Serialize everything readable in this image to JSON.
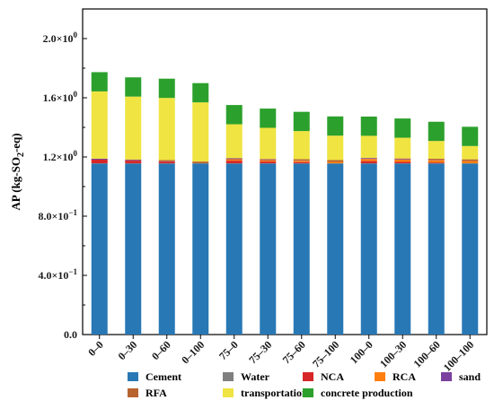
{
  "chart_data": {
    "type": "bar",
    "stacked": true,
    "title": "",
    "xlabel": "",
    "ylabel": "AP (kg-SO2-eq)",
    "ylim": [
      0,
      2.2
    ],
    "y_ticks": [
      {
        "value": 0.0,
        "label": "0.0"
      },
      {
        "value": 0.4,
        "label": "4.0×10",
        "exp": "−1"
      },
      {
        "value": 0.8,
        "label": "8.0×10",
        "exp": "−1"
      },
      {
        "value": 1.2,
        "label": "1.2×10",
        "exp": "0"
      },
      {
        "value": 1.6,
        "label": "1.6×10",
        "exp": "0"
      },
      {
        "value": 2.0,
        "label": "2.0×10",
        "exp": "0"
      }
    ],
    "grid": false,
    "legend_position": "bottom",
    "categories": [
      "0–0",
      "0–30",
      "0–60",
      "0–100",
      "75–0",
      "75–30",
      "75–60",
      "75–100",
      "100–0",
      "100–30",
      "100–60",
      "100–100"
    ],
    "series": [
      {
        "name": "Cement",
        "color": "#2878b5",
        "values": [
          1.155,
          1.155,
          1.155,
          1.155,
          1.155,
          1.155,
          1.155,
          1.155,
          1.155,
          1.155,
          1.155,
          1.155
        ]
      },
      {
        "name": "Water",
        "color": "#7f7f7f",
        "values": [
          0.002,
          0.002,
          0.002,
          0.002,
          0.002,
          0.002,
          0.002,
          0.002,
          0.002,
          0.002,
          0.002,
          0.002
        ]
      },
      {
        "name": "NCA",
        "color": "#d62728",
        "values": [
          0.025,
          0.018,
          0.012,
          0.0,
          0.018,
          0.012,
          0.008,
          0.0,
          0.015,
          0.01,
          0.006,
          0.0
        ]
      },
      {
        "name": "RCA",
        "color": "#ff7f0e",
        "values": [
          0.0,
          0.0,
          0.0,
          0.0,
          0.01,
          0.01,
          0.01,
          0.01,
          0.015,
          0.015,
          0.015,
          0.015
        ]
      },
      {
        "name": "sand",
        "color": "#7b3f9e",
        "values": [
          0.006,
          0.004,
          0.002,
          0.0,
          0.006,
          0.004,
          0.002,
          0.0,
          0.006,
          0.004,
          0.002,
          0.0
        ]
      },
      {
        "name": "RFA",
        "color": "#b8642f",
        "values": [
          0.0,
          0.004,
          0.008,
          0.012,
          0.0,
          0.004,
          0.008,
          0.012,
          0.0,
          0.004,
          0.008,
          0.012
        ]
      },
      {
        "name": "transportation",
        "color": "#f0e442",
        "values": [
          0.455,
          0.425,
          0.42,
          0.4,
          0.23,
          0.21,
          0.19,
          0.165,
          0.15,
          0.14,
          0.12,
          0.09
        ]
      },
      {
        "name": "concrete production",
        "color": "#2ca02c",
        "values": [
          0.13,
          0.13,
          0.13,
          0.13,
          0.13,
          0.13,
          0.13,
          0.13,
          0.13,
          0.13,
          0.13,
          0.13
        ]
      }
    ]
  }
}
